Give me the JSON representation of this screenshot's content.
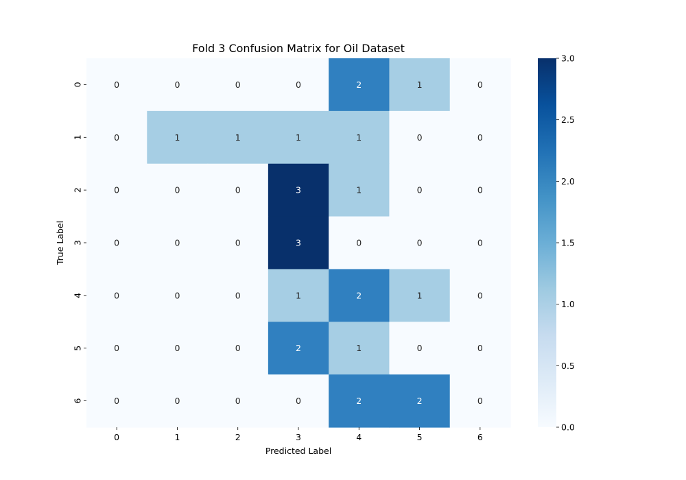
{
  "chart_data": {
    "type": "heatmap",
    "title": "Fold 3 Confusion Matrix for Oil Dataset",
    "xlabel": "Predicted Label",
    "ylabel": "True Label",
    "x_categories": [
      "0",
      "1",
      "2",
      "3",
      "4",
      "5",
      "6"
    ],
    "y_categories": [
      "0",
      "1",
      "2",
      "3",
      "4",
      "5",
      "6"
    ],
    "matrix": [
      [
        0,
        0,
        0,
        0,
        2,
        1,
        0
      ],
      [
        0,
        1,
        1,
        1,
        1,
        0,
        0
      ],
      [
        0,
        0,
        0,
        3,
        1,
        0,
        0
      ],
      [
        0,
        0,
        0,
        3,
        0,
        0,
        0
      ],
      [
        0,
        0,
        0,
        1,
        2,
        1,
        0
      ],
      [
        0,
        0,
        0,
        2,
        1,
        0,
        0
      ],
      [
        0,
        0,
        0,
        0,
        2,
        2,
        0
      ]
    ],
    "colormap": "Blues",
    "vmin": 0.0,
    "vmax": 3.0,
    "colorbar_ticks": [
      "0.0",
      "0.5",
      "1.0",
      "1.5",
      "2.0",
      "2.5",
      "3.0"
    ],
    "color_scale": {
      "0": "#f7fbff",
      "1": "#a6cee4",
      "2": "#3080c0",
      "3": "#08306b"
    },
    "annotation_colors": {
      "light": "#ffffff",
      "dark": "#262626"
    }
  }
}
